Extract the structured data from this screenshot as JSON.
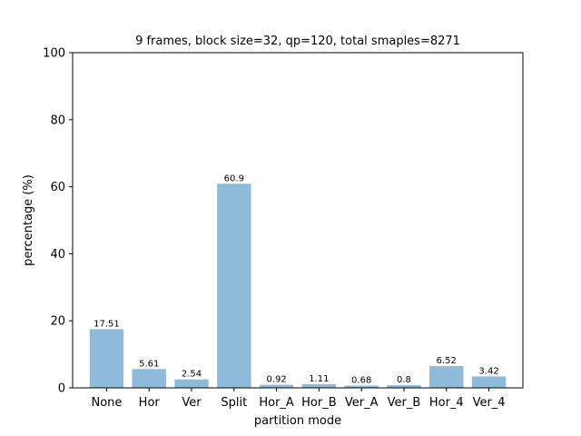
{
  "chart_data": {
    "type": "bar",
    "title": "9 frames, block size=32, qp=120, total smaples=8271",
    "xlabel": "partition mode",
    "ylabel": "percentage (%)",
    "ylim": [
      0,
      100
    ],
    "yticks": [
      0,
      20,
      40,
      60,
      80,
      100
    ],
    "grid": false,
    "categories": [
      "None",
      "Hor",
      "Ver",
      "Split",
      "Hor_A",
      "Hor_B",
      "Ver_A",
      "Ver_B",
      "Hor_4",
      "Ver_4"
    ],
    "values": [
      17.51,
      5.61,
      2.54,
      60.9,
      0.92,
      1.11,
      0.68,
      0.8,
      6.52,
      3.42
    ],
    "data_labels": [
      "17.51",
      "5.61",
      "2.54",
      "60.9",
      "0.92",
      "1.11",
      "0.68",
      "0.8",
      "6.52",
      "3.42"
    ],
    "bar_color": "#8fbbda"
  }
}
